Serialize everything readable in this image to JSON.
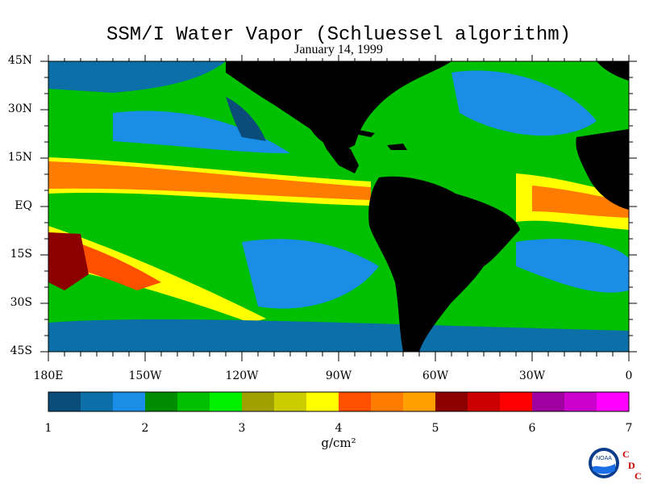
{
  "title": "SSM/I Water Vapor (Schluessel algorithm)",
  "date": "January 14, 1999",
  "map": {
    "lat_labels": [
      "45N",
      "30N",
      "15N",
      "EQ",
      "15S",
      "30S",
      "45S"
    ],
    "lon_labels": [
      "180E",
      "150W",
      "120W",
      "90W",
      "60W",
      "30W",
      "0"
    ],
    "land_color": "#000000",
    "ocean_palette": "water-vapor"
  },
  "colorbar": {
    "min": 1,
    "max": 7,
    "tick_labels": [
      "1",
      "2",
      "3",
      "4",
      "5",
      "6",
      "7"
    ],
    "unit": "g/cm²",
    "colors": [
      "#0a4c7a",
      "#0d6fa8",
      "#1a8de6",
      "#008c00",
      "#00c000",
      "#00f000",
      "#a0a000",
      "#cccc00",
      "#ffff00",
      "#ff5000",
      "#ff7c00",
      "#ffa000",
      "#8c0000",
      "#cc0000",
      "#ff0000",
      "#a000a0",
      "#cc00cc",
      "#ff00ff"
    ]
  },
  "logo": {
    "noaa_text": "NOAA",
    "cdc_letters": [
      "C",
      "D",
      "C"
    ]
  }
}
